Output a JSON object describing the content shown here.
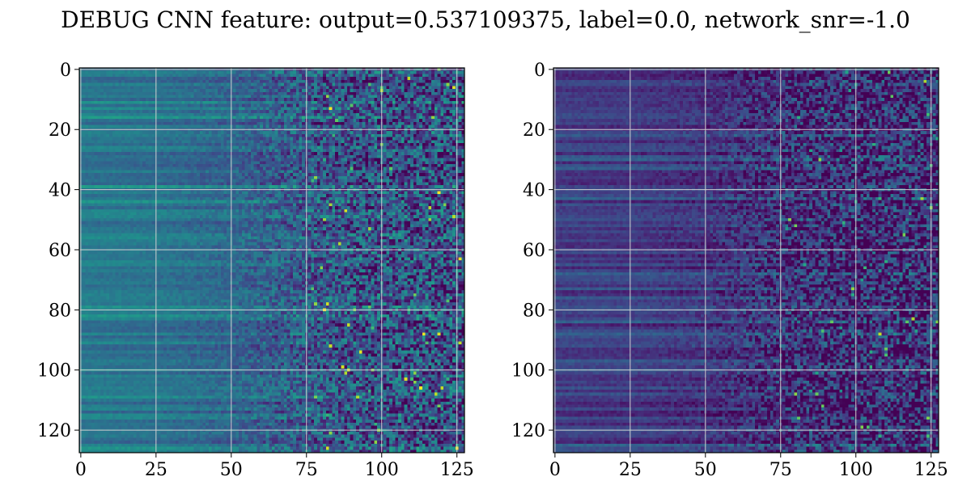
{
  "figure": {
    "title": "DEBUG CNN feature: output=0.537109375, label=0.0, network_snr=-1.0"
  },
  "chart_data": [
    {
      "type": "heatmap",
      "panel": "left",
      "colormap": "viridis",
      "shape": [
        128,
        128
      ],
      "xlim": [
        0,
        127
      ],
      "ylim": [
        127,
        0
      ],
      "grid": true,
      "xticks": [
        0,
        25,
        50,
        75,
        100,
        125
      ],
      "yticks": [
        0,
        20,
        40,
        60,
        80,
        100,
        120
      ],
      "xtick_labels": [
        "0",
        "25",
        "50",
        "75",
        "100",
        "125"
      ],
      "ytick_labels": [
        "0",
        "20",
        "40",
        "60",
        "80",
        "100",
        "120"
      ],
      "value_range": [
        0,
        1
      ],
      "column_profile": {
        "columns": [
          0,
          25,
          50,
          75,
          100,
          127
        ],
        "mean_level": [
          0.4,
          0.38,
          0.33,
          0.28,
          0.25,
          0.24
        ],
        "noise_level": [
          0.03,
          0.04,
          0.08,
          0.22,
          0.28,
          0.3
        ]
      }
    },
    {
      "type": "heatmap",
      "panel": "right",
      "colormap": "viridis",
      "shape": [
        128,
        128
      ],
      "xlim": [
        0,
        127
      ],
      "ylim": [
        127,
        0
      ],
      "grid": true,
      "xticks": [
        0,
        25,
        50,
        75,
        100,
        125
      ],
      "yticks": [
        0,
        20,
        40,
        60,
        80,
        100,
        120
      ],
      "xtick_labels": [
        "0",
        "25",
        "50",
        "75",
        "100",
        "125"
      ],
      "ytick_labels": [
        "0",
        "20",
        "40",
        "60",
        "80",
        "100",
        "120"
      ],
      "value_range": [
        0,
        1
      ],
      "column_profile": {
        "columns": [
          0,
          25,
          50,
          75,
          100,
          127
        ],
        "mean_level": [
          0.18,
          0.17,
          0.15,
          0.13,
          0.12,
          0.12
        ],
        "noise_level": [
          0.04,
          0.04,
          0.08,
          0.22,
          0.26,
          0.28
        ]
      }
    }
  ]
}
